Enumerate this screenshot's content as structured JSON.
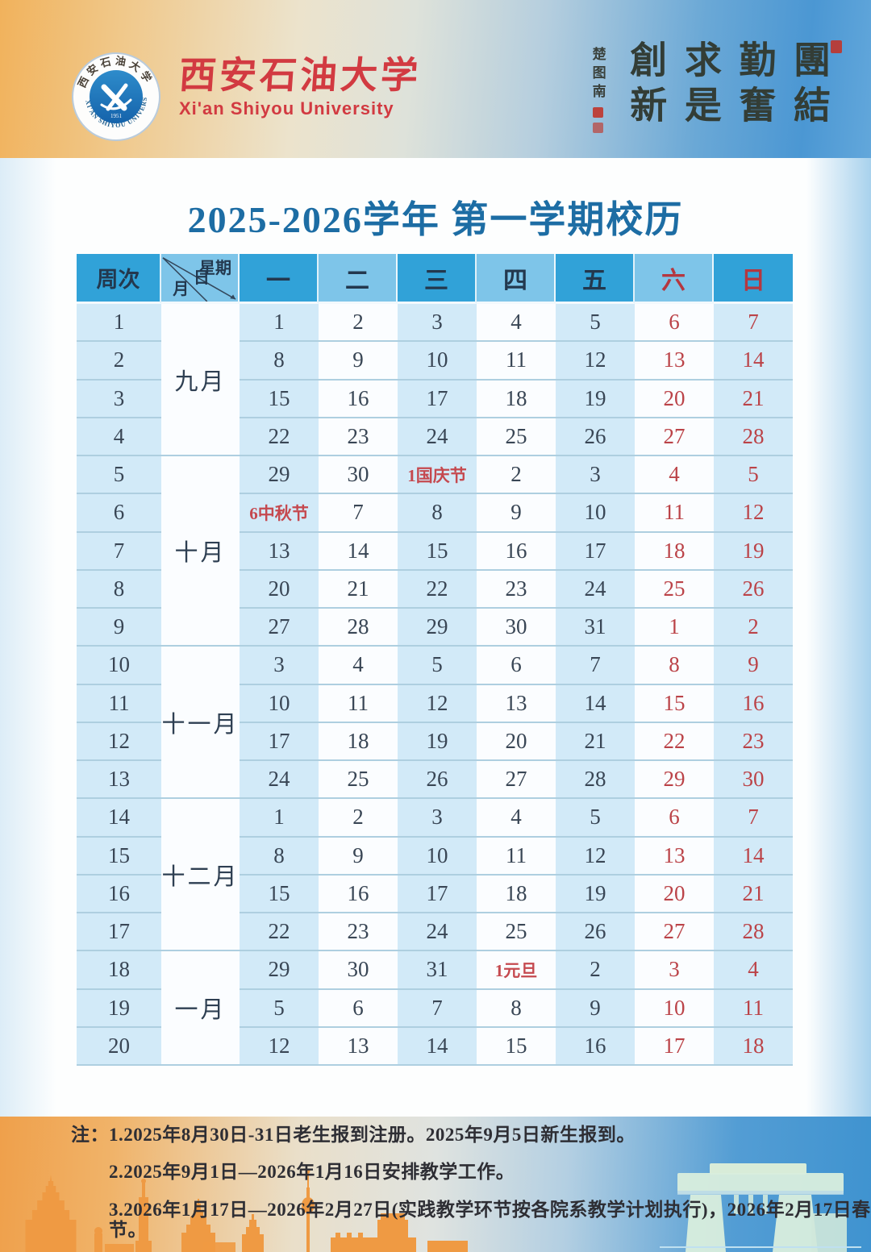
{
  "banner": {
    "university_name_cn": "西安石油大学",
    "university_name_en": "Xi'an Shiyou University",
    "logo_ring_top": "西安石油大学",
    "logo_ring_bottom": "XI'AN SHIYOU UNIVERSITY",
    "logo_year": "1951",
    "motto_words": [
      "團結",
      "勤奮",
      "求是",
      "創新"
    ],
    "motto_signature": "楚图南"
  },
  "title": "2025-2026学年 第一学期校历",
  "calendar": {
    "corner": {
      "week": "周次",
      "weekday": "星期",
      "day": "日",
      "month": "月"
    },
    "weekday_headers": [
      "一",
      "二",
      "三",
      "四",
      "五",
      "六",
      "日"
    ],
    "months": [
      {
        "name": "九月",
        "span": 4
      },
      {
        "name": "十月",
        "span": 5
      },
      {
        "name": "十一月",
        "span": 4
      },
      {
        "name": "十二月",
        "span": 4
      },
      {
        "name": "一月",
        "span": 3
      }
    ],
    "weeks": [
      {
        "week": "1",
        "days": [
          "1",
          "2",
          "3",
          "4",
          "5",
          "6",
          "7"
        ]
      },
      {
        "week": "2",
        "days": [
          "8",
          "9",
          "10",
          "11",
          "12",
          "13",
          "14"
        ]
      },
      {
        "week": "3",
        "days": [
          "15",
          "16",
          "17",
          "18",
          "19",
          "20",
          "21"
        ]
      },
      {
        "week": "4",
        "days": [
          "22",
          "23",
          "24",
          "25",
          "26",
          "27",
          "28"
        ]
      },
      {
        "week": "5",
        "days": [
          "29",
          "30",
          "1国庆节",
          "2",
          "3",
          "4",
          "5"
        ]
      },
      {
        "week": "6",
        "days": [
          "6中秋节",
          "7",
          "8",
          "9",
          "10",
          "11",
          "12"
        ]
      },
      {
        "week": "7",
        "days": [
          "13",
          "14",
          "15",
          "16",
          "17",
          "18",
          "19"
        ]
      },
      {
        "week": "8",
        "days": [
          "20",
          "21",
          "22",
          "23",
          "24",
          "25",
          "26"
        ]
      },
      {
        "week": "9",
        "days": [
          "27",
          "28",
          "29",
          "30",
          "31",
          "1",
          "2"
        ]
      },
      {
        "week": "10",
        "days": [
          "3",
          "4",
          "5",
          "6",
          "7",
          "8",
          "9"
        ]
      },
      {
        "week": "11",
        "days": [
          "10",
          "11",
          "12",
          "13",
          "14",
          "15",
          "16"
        ]
      },
      {
        "week": "12",
        "days": [
          "17",
          "18",
          "19",
          "20",
          "21",
          "22",
          "23"
        ]
      },
      {
        "week": "13",
        "days": [
          "24",
          "25",
          "26",
          "27",
          "28",
          "29",
          "30"
        ]
      },
      {
        "week": "14",
        "days": [
          "1",
          "2",
          "3",
          "4",
          "5",
          "6",
          "7"
        ]
      },
      {
        "week": "15",
        "days": [
          "8",
          "9",
          "10",
          "11",
          "12",
          "13",
          "14"
        ]
      },
      {
        "week": "16",
        "days": [
          "15",
          "16",
          "17",
          "18",
          "19",
          "20",
          "21"
        ]
      },
      {
        "week": "17",
        "days": [
          "22",
          "23",
          "24",
          "25",
          "26",
          "27",
          "28"
        ]
      },
      {
        "week": "18",
        "days": [
          "29",
          "30",
          "31",
          "1元旦",
          "2",
          "3",
          "4"
        ]
      },
      {
        "week": "19",
        "days": [
          "5",
          "6",
          "7",
          "8",
          "9",
          "10",
          "11"
        ]
      },
      {
        "week": "20",
        "days": [
          "12",
          "13",
          "14",
          "15",
          "16",
          "17",
          "18"
        ]
      }
    ]
  },
  "notes": {
    "line1": "注：1.2025年8月30日-31日老生报到注册。2025年9月5日新生报到。",
    "line2": "2.2025年9月1日—2026年1月16日安排教学工作。",
    "line3": "3.2026年1月17日—2026年2月27日(实践教学环节按各院系教学计划执行)，2026年2月17日春节。"
  },
  "colors": {
    "header_dark": "#31a2d8",
    "header_light": "#7ec5e9",
    "row_tint": "#d2eaf8",
    "weekend_red": "#bb4348",
    "title_blue": "#1d6da4",
    "brand_red": "#d23a41"
  }
}
